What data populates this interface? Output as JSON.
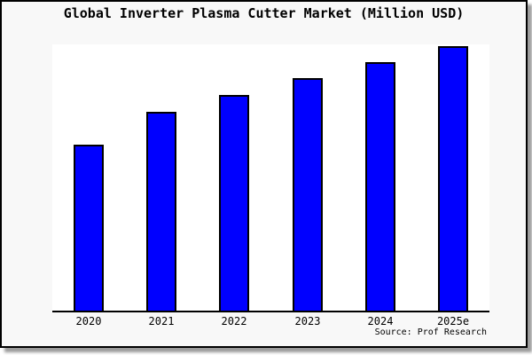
{
  "figure": {
    "background": "#f8f8f8",
    "border_color": "#000000",
    "shadow_color": "#9c9c9c",
    "plot_background": "#ffffff"
  },
  "chart": {
    "title": "Global Inverter Plasma Cutter Market (Million USD)",
    "source": "Source: Prof Research"
  },
  "chart_data": {
    "type": "bar",
    "title": "Global Inverter Plasma Cutter Market (Million USD)",
    "categories": [
      "2020",
      "2021",
      "2022",
      "2023",
      "2024",
      "2025e"
    ],
    "values_pct_of_max": [
      62.9,
      75.3,
      81.6,
      88.0,
      94.0,
      100
    ],
    "xlabel": "",
    "ylabel": "",
    "ylim": [
      0,
      100
    ],
    "y_axis_labels_visible": false,
    "grid": false,
    "legend": false,
    "bar_color": "#0000ff",
    "bar_edge_color": "#000000",
    "axis_color": "#000000",
    "source_note": "Source: Prof Research"
  }
}
